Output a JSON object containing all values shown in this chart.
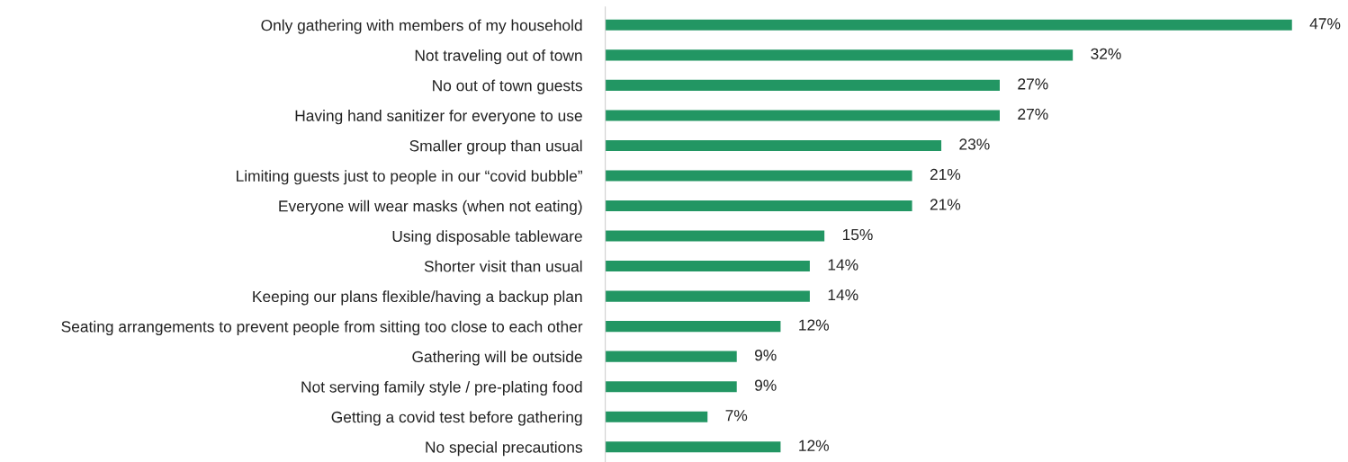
{
  "chart_data": {
    "type": "bar",
    "orientation": "horizontal",
    "categories": [
      "Only gathering with members of my household",
      "Not traveling out of town",
      "No out of town guests",
      "Having hand sanitizer for everyone to use",
      "Smaller group than usual",
      "Limiting guests just to people in our “covid bubble”",
      "Everyone will wear masks (when not eating)",
      "Using disposable tableware",
      "Shorter visit than usual",
      "Keeping our plans flexible/having a backup plan",
      "Seating arrangements to prevent people from sitting too close to each other",
      "Gathering will be outside",
      "Not serving family style / pre-plating food",
      "Getting a covid test before gathering",
      "No special precautions"
    ],
    "values": [
      47,
      32,
      27,
      27,
      23,
      21,
      21,
      15,
      14,
      14,
      12,
      9,
      9,
      7,
      12
    ],
    "value_labels": [
      "47%",
      "32%",
      "27%",
      "27%",
      "23%",
      "21%",
      "21%",
      "15%",
      "14%",
      "14%",
      "12%",
      "9%",
      "9%",
      "7%",
      "12%"
    ],
    "color": "#229663",
    "grid": false,
    "legend": false
  }
}
